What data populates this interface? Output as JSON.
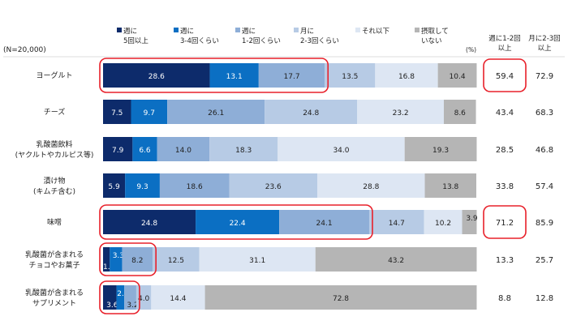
{
  "chart_data": {
    "type": "bar",
    "orientation": "horizontal",
    "stacked": true,
    "sample_note": "(N=20,000)",
    "unit_note": "(%)",
    "legend": [
      {
        "line1": "週に",
        "line2": "5回以上",
        "color": "#0d2b6b"
      },
      {
        "line1": "週に",
        "line2": "3-4回くらい",
        "color": "#0b6fc3"
      },
      {
        "line1": "週に",
        "line2": "1-2回くらい",
        "color": "#8eaed7"
      },
      {
        "line1": "月に",
        "line2": "2-3回くらい",
        "color": "#b7cbe5"
      },
      {
        "line1": "それ以下",
        "line2": "",
        "color": "#dde6f3"
      },
      {
        "line1": "摂取して",
        "line2": "いない",
        "color": "#b5b5b5"
      }
    ],
    "summary_headers": [
      {
        "line1": "週に1-2回",
        "line2": "以上"
      },
      {
        "line1": "月に2-3回",
        "line2": "以上"
      }
    ],
    "categories": [
      {
        "label1": "ヨーグルト",
        "label2": ""
      },
      {
        "label1": "チーズ",
        "label2": ""
      },
      {
        "label1": "乳酸菌飲料",
        "label2": "(ヤクルトやカルピス等)"
      },
      {
        "label1": "漬け物",
        "label2": "(キムチ含む)"
      },
      {
        "label1": "味噌",
        "label2": ""
      },
      {
        "label1": "乳酸菌が含まれる",
        "label2": "チョコやお菓子"
      },
      {
        "label1": "乳酸菌が含まれる",
        "label2": "サプリメント"
      }
    ],
    "series": [
      {
        "name": "週に5回以上",
        "values": [
          28.6,
          7.5,
          7.9,
          5.9,
          24.8,
          1.8,
          3.6
        ]
      },
      {
        "name": "週に3-4回くらい",
        "values": [
          13.1,
          9.7,
          6.6,
          9.3,
          22.4,
          3.3,
          2.1
        ]
      },
      {
        "name": "週に1-2回くらい",
        "values": [
          17.7,
          26.1,
          14.0,
          18.6,
          24.1,
          8.2,
          3.2
        ]
      },
      {
        "name": "月に2-3回くらい",
        "values": [
          13.5,
          24.8,
          18.3,
          23.6,
          14.7,
          12.5,
          4.0
        ]
      },
      {
        "name": "それ以下",
        "values": [
          16.8,
          23.2,
          34.0,
          28.8,
          10.2,
          31.1,
          14.4
        ]
      },
      {
        "name": "摂取していない",
        "values": [
          10.4,
          8.6,
          19.3,
          13.8,
          3.9,
          43.2,
          72.8
        ]
      }
    ],
    "summary1": [
      "59.4",
      "43.4",
      "28.5",
      "33.8",
      "71.2",
      "13.3",
      "8.8"
    ],
    "summary2": [
      "72.9",
      "68.3",
      "46.8",
      "57.4",
      "85.9",
      "25.7",
      "12.8"
    ],
    "highlights": {
      "bars": [
        0,
        4,
        5,
        6
      ],
      "summary1": [
        0,
        4
      ]
    },
    "xlim": [
      0,
      100
    ]
  }
}
